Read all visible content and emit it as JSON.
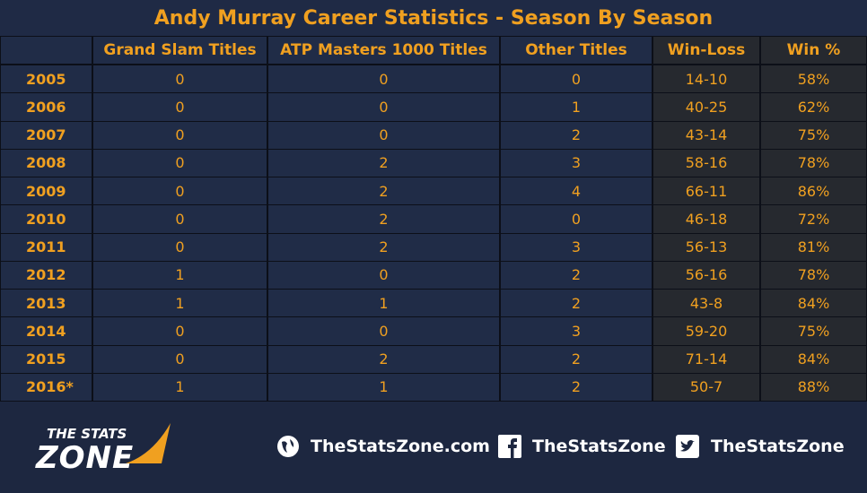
{
  "header": {
    "title": "Andy Murray Career Statistics - Season By Season"
  },
  "table": {
    "columns": [
      "",
      "Grand Slam Titles",
      "ATP Masters 1000 Titles",
      "Other Titles",
      "Win-Loss",
      "Win %"
    ],
    "rows": [
      [
        "2005",
        "0",
        "0",
        "0",
        "14-10",
        "58%"
      ],
      [
        "2006",
        "0",
        "0",
        "1",
        "40-25",
        "62%"
      ],
      [
        "2007",
        "0",
        "0",
        "2",
        "43-14",
        "75%"
      ],
      [
        "2008",
        "0",
        "2",
        "3",
        "58-16",
        "78%"
      ],
      [
        "2009",
        "0",
        "2",
        "4",
        "66-11",
        "86%"
      ],
      [
        "2010",
        "0",
        "2",
        "0",
        "46-18",
        "72%"
      ],
      [
        "2011",
        "0",
        "2",
        "3",
        "56-13",
        "81%"
      ],
      [
        "2012",
        "1",
        "0",
        "2",
        "56-16",
        "78%"
      ],
      [
        "2013",
        "1",
        "1",
        "2",
        "43-8",
        "84%"
      ],
      [
        "2014",
        "0",
        "0",
        "3",
        "59-20",
        "75%"
      ],
      [
        "2015",
        "0",
        "2",
        "2",
        "71-14",
        "84%"
      ],
      [
        "2016*",
        "1",
        "1",
        "2",
        "50-7",
        "88%"
      ]
    ]
  },
  "footer": {
    "logo_top": "THE STATS",
    "logo_bottom": "ZONE",
    "links": [
      "TheStatsZone.com",
      "TheStatsZone",
      "TheStatsZone"
    ]
  }
}
